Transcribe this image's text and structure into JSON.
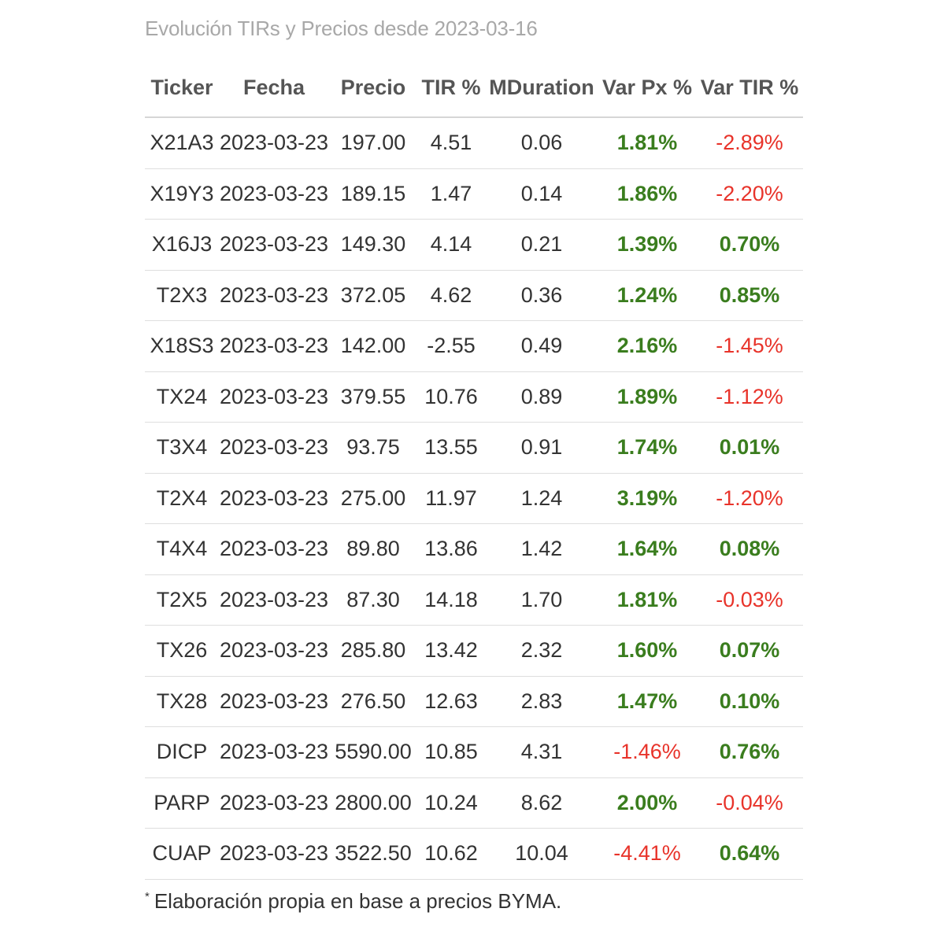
{
  "caption": "Evolución TIRs y Precios desde 2023-03-16",
  "columns": [
    "Ticker",
    "Fecha",
    "Precio",
    "TIR %",
    "MDuration",
    "Var Px %",
    "Var TIR %"
  ],
  "rows": [
    {
      "ticker": "X21A3",
      "fecha": "2023-03-23",
      "precio": "197.00",
      "tir": "4.51",
      "mduration": "0.06",
      "var_px": "1.81%",
      "var_tir": "-2.89%"
    },
    {
      "ticker": "X19Y3",
      "fecha": "2023-03-23",
      "precio": "189.15",
      "tir": "1.47",
      "mduration": "0.14",
      "var_px": "1.86%",
      "var_tir": "-2.20%"
    },
    {
      "ticker": "X16J3",
      "fecha": "2023-03-23",
      "precio": "149.30",
      "tir": "4.14",
      "mduration": "0.21",
      "var_px": "1.39%",
      "var_tir": "0.70%"
    },
    {
      "ticker": "T2X3",
      "fecha": "2023-03-23",
      "precio": "372.05",
      "tir": "4.62",
      "mduration": "0.36",
      "var_px": "1.24%",
      "var_tir": "0.85%"
    },
    {
      "ticker": "X18S3",
      "fecha": "2023-03-23",
      "precio": "142.00",
      "tir": "-2.55",
      "mduration": "0.49",
      "var_px": "2.16%",
      "var_tir": "-1.45%"
    },
    {
      "ticker": "TX24",
      "fecha": "2023-03-23",
      "precio": "379.55",
      "tir": "10.76",
      "mduration": "0.89",
      "var_px": "1.89%",
      "var_tir": "-1.12%"
    },
    {
      "ticker": "T3X4",
      "fecha": "2023-03-23",
      "precio": "93.75",
      "tir": "13.55",
      "mduration": "0.91",
      "var_px": "1.74%",
      "var_tir": "0.01%"
    },
    {
      "ticker": "T2X4",
      "fecha": "2023-03-23",
      "precio": "275.00",
      "tir": "11.97",
      "mduration": "1.24",
      "var_px": "3.19%",
      "var_tir": "-1.20%"
    },
    {
      "ticker": "T4X4",
      "fecha": "2023-03-23",
      "precio": "89.80",
      "tir": "13.86",
      "mduration": "1.42",
      "var_px": "1.64%",
      "var_tir": "0.08%"
    },
    {
      "ticker": "T2X5",
      "fecha": "2023-03-23",
      "precio": "87.30",
      "tir": "14.18",
      "mduration": "1.70",
      "var_px": "1.81%",
      "var_tir": "-0.03%"
    },
    {
      "ticker": "TX26",
      "fecha": "2023-03-23",
      "precio": "285.80",
      "tir": "13.42",
      "mduration": "2.32",
      "var_px": "1.60%",
      "var_tir": "0.07%"
    },
    {
      "ticker": "TX28",
      "fecha": "2023-03-23",
      "precio": "276.50",
      "tir": "12.63",
      "mduration": "2.83",
      "var_px": "1.47%",
      "var_tir": "0.10%"
    },
    {
      "ticker": "DICP",
      "fecha": "2023-03-23",
      "precio": "5590.00",
      "tir": "10.85",
      "mduration": "4.31",
      "var_px": "-1.46%",
      "var_tir": "0.76%"
    },
    {
      "ticker": "PARP",
      "fecha": "2023-03-23",
      "precio": "2800.00",
      "tir": "10.24",
      "mduration": "8.62",
      "var_px": "2.00%",
      "var_tir": "-0.04%"
    },
    {
      "ticker": "CUAP",
      "fecha": "2023-03-23",
      "precio": "3522.50",
      "tir": "10.62",
      "mduration": "10.04",
      "var_px": "-4.41%",
      "var_tir": "0.64%"
    }
  ],
  "footnote": {
    "mark": "*",
    "text": "Elaboración propia en base a precios BYMA."
  },
  "colors": {
    "positive": "#3a7d1e",
    "negative": "#e8332a",
    "caption": "#a8a8a8"
  }
}
